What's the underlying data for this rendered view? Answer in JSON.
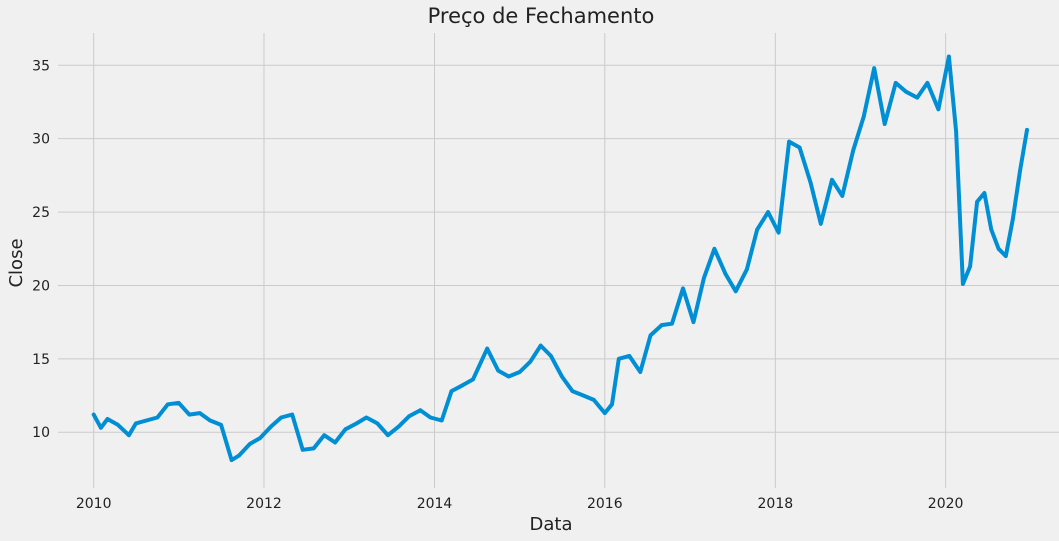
{
  "chart_data": {
    "type": "line",
    "title": "Preço de Fechamento",
    "xlabel": "Data",
    "ylabel": "Close",
    "xlim": [
      "2009-08-01",
      "2021-05-01"
    ],
    "ylim": [
      6.2,
      37.2
    ],
    "x_ticks": [
      {
        "value": "2010-01-01",
        "label": "2010"
      },
      {
        "value": "2012-01-01",
        "label": "2012"
      },
      {
        "value": "2014-01-01",
        "label": "2014"
      },
      {
        "value": "2016-01-01",
        "label": "2016"
      },
      {
        "value": "2018-01-01",
        "label": "2018"
      },
      {
        "value": "2020-01-01",
        "label": "2020"
      }
    ],
    "y_ticks": [
      {
        "value": 10,
        "label": "10"
      },
      {
        "value": 15,
        "label": "15"
      },
      {
        "value": 20,
        "label": "20"
      },
      {
        "value": 25,
        "label": "25"
      },
      {
        "value": 30,
        "label": "30"
      },
      {
        "value": 35,
        "label": "35"
      }
    ],
    "grid": true,
    "color": "#008fd5",
    "series": [
      {
        "x": [
          "2010-01-01",
          "2010-02-01",
          "2010-03-01",
          "2010-04-15",
          "2010-06-01",
          "2010-07-01",
          "2010-08-15",
          "2010-10-01",
          "2010-11-15",
          "2011-01-01",
          "2011-02-15",
          "2011-04-01",
          "2011-05-15",
          "2011-07-01",
          "2011-08-15",
          "2011-09-15",
          "2011-11-01",
          "2011-12-15",
          "2012-02-01",
          "2012-03-15",
          "2012-05-01",
          "2012-06-15",
          "2012-08-01",
          "2012-09-15",
          "2012-11-01",
          "2012-12-15",
          "2013-02-01",
          "2013-03-15",
          "2013-05-01",
          "2013-06-15",
          "2013-08-01",
          "2013-09-15",
          "2013-11-01",
          "2013-12-15",
          "2014-02-01",
          "2014-03-15",
          "2014-05-01",
          "2014-06-15",
          "2014-08-15",
          "2014-10-01",
          "2014-11-15",
          "2015-01-01",
          "2015-02-15",
          "2015-04-01",
          "2015-05-15",
          "2015-07-01",
          "2015-08-15",
          "2015-10-01",
          "2015-11-15",
          "2016-01-01",
          "2016-02-01",
          "2016-03-01",
          "2016-04-15",
          "2016-06-01",
          "2016-07-15",
          "2016-09-01",
          "2016-10-15",
          "2016-12-01",
          "2017-01-15",
          "2017-03-01",
          "2017-04-15",
          "2017-06-01",
          "2017-07-15",
          "2017-09-01",
          "2017-10-15",
          "2017-12-01",
          "2018-01-15",
          "2018-03-01",
          "2018-04-15",
          "2018-06-01",
          "2018-07-15",
          "2018-09-01",
          "2018-10-15",
          "2018-12-01",
          "2019-01-15",
          "2019-03-01",
          "2019-04-15",
          "2019-06-01",
          "2019-07-15",
          "2019-09-01",
          "2019-10-15",
          "2019-12-01",
          "2020-01-15",
          "2020-02-15",
          "2020-03-15",
          "2020-04-15",
          "2020-05-15",
          "2020-06-15",
          "2020-07-15",
          "2020-08-15",
          "2020-09-15",
          "2020-10-15",
          "2020-11-15",
          "2020-12-15"
        ],
        "y": [
          11.2,
          10.3,
          10.9,
          10.5,
          9.8,
          10.6,
          10.8,
          11.0,
          11.9,
          12.0,
          11.2,
          11.3,
          10.8,
          10.5,
          8.1,
          8.4,
          9.2,
          9.6,
          10.4,
          11.0,
          11.2,
          8.8,
          8.9,
          9.8,
          9.3,
          10.2,
          10.6,
          11.0,
          10.6,
          9.8,
          10.4,
          11.1,
          11.5,
          11.0,
          10.8,
          12.8,
          13.2,
          13.6,
          15.7,
          14.2,
          13.8,
          14.1,
          14.8,
          15.9,
          15.2,
          13.8,
          12.8,
          12.5,
          12.2,
          11.3,
          11.9,
          15.0,
          15.2,
          14.1,
          16.6,
          17.3,
          17.4,
          19.8,
          17.5,
          20.5,
          22.5,
          20.8,
          19.6,
          21.1,
          23.8,
          25.0,
          23.6,
          29.8,
          29.4,
          27.0,
          24.2,
          27.2,
          26.1,
          29.2,
          31.5,
          34.8,
          31.0,
          33.8,
          33.2,
          32.8,
          33.8,
          32.0,
          35.6,
          30.5,
          20.1,
          21.3,
          25.7,
          26.3,
          23.8,
          22.5,
          22.0,
          24.5,
          27.8,
          30.6
        ]
      }
    ]
  }
}
